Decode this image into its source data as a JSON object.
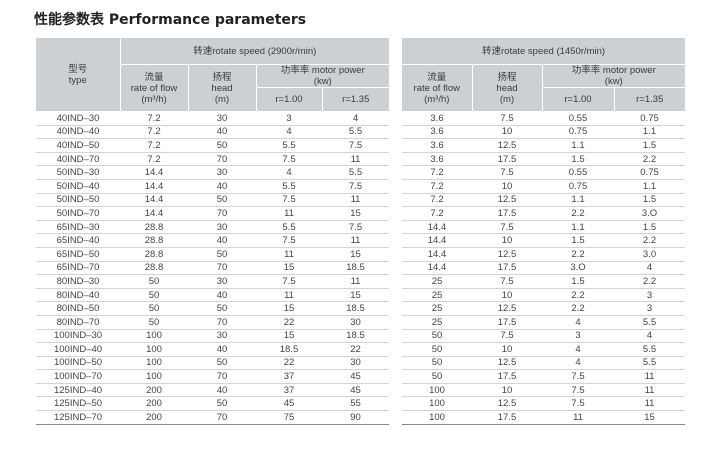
{
  "title": "性能参数表 Performance parameters",
  "header": {
    "type_cn": "型号",
    "type_en": "type",
    "speed_left": "转速rotate speed (2900r/min)",
    "speed_right": "转速rotate speed (1450r/min)",
    "flow_cn": "流量",
    "flow_en": "rate of flow",
    "flow_unit": "(m³/h)",
    "head_cn": "扬程",
    "head_en": "head",
    "head_unit": "(m)",
    "power": "功率率 motor power",
    "power_unit": "(kw)",
    "r1": "r=1.00",
    "r2": "r=1.35"
  },
  "rows": [
    [
      "40IND–30",
      "7.2",
      "30",
      "3",
      "4",
      "3.6",
      "7.5",
      "0.55",
      "0.75"
    ],
    [
      "40IND–40",
      "7.2",
      "40",
      "4",
      "5.5",
      "3.6",
      "10",
      "0.75",
      "1.1"
    ],
    [
      "40IND–50",
      "7.2",
      "50",
      "5.5",
      "7.5",
      "3.6",
      "12.5",
      "1.1",
      "1.5"
    ],
    [
      "40IND–70",
      "7.2",
      "70",
      "7.5",
      "11",
      "3.6",
      "17.5",
      "1.5",
      "2.2"
    ],
    [
      "50IND–30",
      "14.4",
      "30",
      "4",
      "5.5",
      "7.2",
      "7.5",
      "0.55",
      "0.75"
    ],
    [
      "50IND–40",
      "14.4",
      "40",
      "5.5",
      "7.5",
      "7.2",
      "10",
      "0.75",
      "1.1"
    ],
    [
      "50IND–50",
      "14.4",
      "50",
      "7.5",
      "11",
      "7.2",
      "12.5",
      "1.1",
      "1.5"
    ],
    [
      "50IND–70",
      "14.4",
      "70",
      "11",
      "15",
      "7.2",
      "17.5",
      "2.2",
      "3.O"
    ],
    [
      "65IND–30",
      "28.8",
      "30",
      "5.5",
      "7.5",
      "14.4",
      "7.5",
      "1.1",
      "1.5"
    ],
    [
      "65IND–40",
      "28.8",
      "40",
      "7.5",
      "11",
      "14.4",
      "10",
      "1.5",
      "2.2"
    ],
    [
      "65IND–50",
      "28.8",
      "50",
      "11",
      "15",
      "14.4",
      "12.5",
      "2.2",
      "3.0"
    ],
    [
      "65IND–70",
      "28.8",
      "70",
      "15",
      "18.5",
      "14.4",
      "17.5",
      "3.O",
      "4"
    ],
    [
      "80IND–30",
      "50",
      "30",
      "7.5",
      "11",
      "25",
      "7.5",
      "1.5",
      "2.2"
    ],
    [
      "80IND–40",
      "50",
      "40",
      "11",
      "15",
      "25",
      "10",
      "2.2",
      "3"
    ],
    [
      "80IND–50",
      "50",
      "50",
      "15",
      "18.5",
      "25",
      "12.5",
      "2.2",
      "3"
    ],
    [
      "80IND–70",
      "50",
      "70",
      "22",
      "30",
      "25",
      "17.5",
      "4",
      "5.5"
    ],
    [
      "100IND–30",
      "100",
      "30",
      "15",
      "18.5",
      "50",
      "7.5",
      "3",
      "4"
    ],
    [
      "100IND–40",
      "100",
      "40",
      "18.5",
      "22",
      "50",
      "10",
      "4",
      "5.5"
    ],
    [
      "100IND–50",
      "100",
      "50",
      "22",
      "30",
      "50",
      "12.5",
      "4",
      "5.5"
    ],
    [
      "100IND–70",
      "100",
      "70",
      "37",
      "45",
      "50",
      "17.5",
      "7.5",
      "11"
    ],
    [
      "125IND–40",
      "200",
      "40",
      "37",
      "45",
      "100",
      "10",
      "7.5",
      "11"
    ],
    [
      "125IND–50",
      "200",
      "50",
      "45",
      "55",
      "100",
      "12.5",
      "7.5",
      "11"
    ],
    [
      "125IND–70",
      "200",
      "70",
      "75",
      "90",
      "100",
      "17.5",
      "11",
      "15"
    ]
  ]
}
